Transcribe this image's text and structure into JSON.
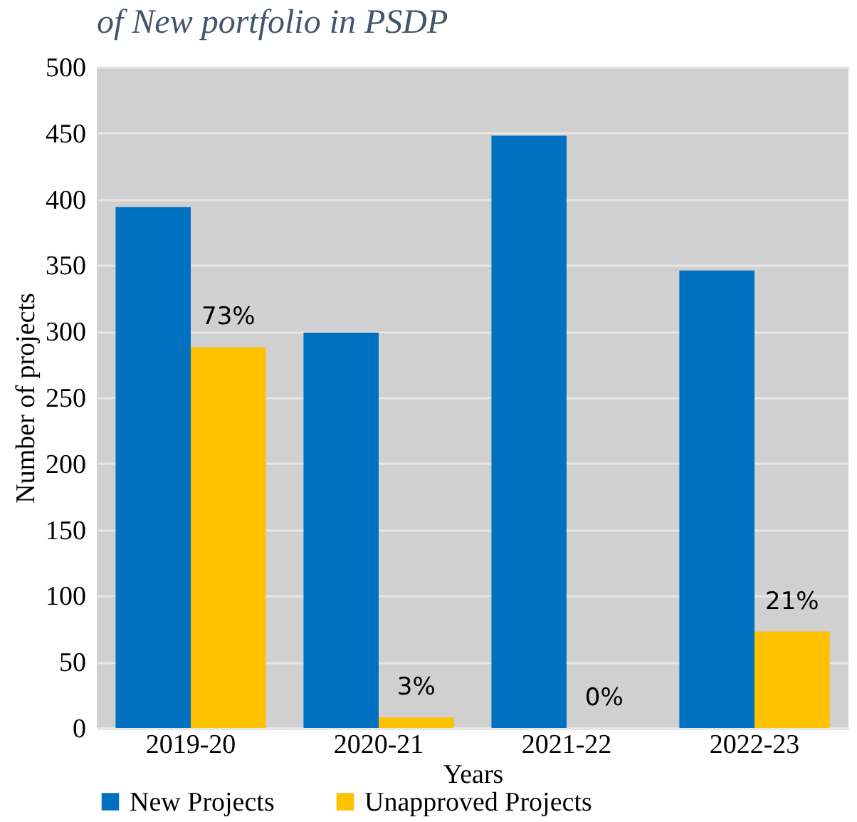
{
  "chart_data": {
    "type": "bar",
    "title": "of New portfolio in PSDP",
    "xlabel": "Years",
    "ylabel": "Number of projects",
    "categories": [
      "2019-20",
      "2020-21",
      "2021-22",
      "2022-23"
    ],
    "series": [
      {
        "name": "New Projects",
        "color": "#0070c0",
        "values": [
          394,
          299,
          448,
          346
        ]
      },
      {
        "name": "Unapproved Projects",
        "color": "#ffc000",
        "values": [
          288,
          8,
          0,
          73
        ]
      }
    ],
    "annotations": [
      {
        "text": "73%",
        "x": "2019-20",
        "y": 288
      },
      {
        "text": "3%",
        "x": "2020-21",
        "y": 8
      },
      {
        "text": "0%",
        "x": "2021-22",
        "y": 0
      },
      {
        "text": "21%",
        "x": "2022-23",
        "y": 73
      }
    ],
    "ylim": [
      0,
      500
    ],
    "yticks": [
      0,
      50,
      100,
      150,
      200,
      250,
      300,
      350,
      400,
      450,
      500
    ],
    "grid": "y",
    "legend": "bottom"
  }
}
